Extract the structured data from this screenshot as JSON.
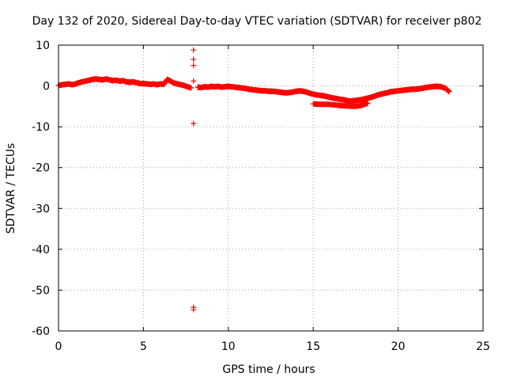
{
  "chart_data": {
    "type": "scatter",
    "title": "Day 132 of 2020, Sidereal Day-to-day VTEC variation (SDTVAR) for receiver p802",
    "xlabel": "GPS time / hours",
    "ylabel": "SDTVAR / TECUs",
    "xlim": [
      0,
      25
    ],
    "ylim": [
      -60,
      10
    ],
    "x_ticks": [
      0,
      5,
      10,
      15,
      20,
      25
    ],
    "y_ticks": [
      10,
      0,
      -10,
      -20,
      -30,
      -40,
      -50,
      -60
    ],
    "grid": true,
    "marker": "+",
    "color": "#ff0000",
    "series": [
      {
        "name": "SDTVAR",
        "points": [
          [
            0.0,
            0.1
          ],
          [
            0.2,
            0.3
          ],
          [
            0.4,
            0.4
          ],
          [
            0.6,
            0.5
          ],
          [
            0.8,
            0.3
          ],
          [
            1.0,
            0.5
          ],
          [
            1.2,
            0.8
          ],
          [
            1.4,
            1.0
          ],
          [
            1.6,
            1.2
          ],
          [
            1.8,
            1.4
          ],
          [
            2.0,
            1.6
          ],
          [
            2.2,
            1.7
          ],
          [
            2.4,
            1.6
          ],
          [
            2.6,
            1.5
          ],
          [
            2.8,
            1.7
          ],
          [
            3.0,
            1.5
          ],
          [
            3.2,
            1.3
          ],
          [
            3.4,
            1.4
          ],
          [
            3.6,
            1.2
          ],
          [
            3.8,
            1.3
          ],
          [
            4.0,
            1.0
          ],
          [
            4.2,
            0.9
          ],
          [
            4.4,
            1.0
          ],
          [
            4.6,
            0.8
          ],
          [
            4.8,
            0.6
          ],
          [
            5.0,
            0.6
          ],
          [
            5.2,
            0.5
          ],
          [
            5.4,
            0.4
          ],
          [
            5.6,
            0.5
          ],
          [
            5.8,
            0.3
          ],
          [
            6.0,
            0.5
          ],
          [
            6.2,
            0.4
          ],
          [
            6.4,
            1.6
          ],
          [
            6.6,
            1.2
          ],
          [
            6.8,
            0.7
          ],
          [
            7.0,
            0.5
          ],
          [
            7.2,
            0.3
          ],
          [
            7.4,
            0.1
          ],
          [
            7.6,
            -0.2
          ],
          [
            7.8,
            -0.5
          ],
          [
            7.95,
            8.8
          ],
          [
            7.95,
            6.5
          ],
          [
            7.95,
            5.0
          ],
          [
            7.95,
            1.2
          ],
          [
            7.95,
            -9.2
          ],
          [
            7.95,
            -54.2
          ],
          [
            7.95,
            -54.8
          ],
          [
            8.2,
            -0.3
          ],
          [
            8.4,
            -0.4
          ],
          [
            8.6,
            -0.2
          ],
          [
            8.8,
            -0.3
          ],
          [
            9.0,
            -0.1
          ],
          [
            9.2,
            -0.2
          ],
          [
            9.4,
            -0.1
          ],
          [
            9.6,
            -0.3
          ],
          [
            9.8,
            -0.2
          ],
          [
            10.0,
            -0.1
          ],
          [
            10.2,
            -0.2
          ],
          [
            10.4,
            -0.3
          ],
          [
            10.6,
            -0.4
          ],
          [
            10.8,
            -0.5
          ],
          [
            11.0,
            -0.6
          ],
          [
            11.2,
            -0.8
          ],
          [
            11.4,
            -0.9
          ],
          [
            11.6,
            -1.0
          ],
          [
            11.8,
            -1.1
          ],
          [
            12.0,
            -1.2
          ],
          [
            12.2,
            -1.2
          ],
          [
            12.4,
            -1.3
          ],
          [
            12.6,
            -1.3
          ],
          [
            12.8,
            -1.4
          ],
          [
            13.0,
            -1.5
          ],
          [
            13.2,
            -1.6
          ],
          [
            13.4,
            -1.7
          ],
          [
            13.6,
            -1.6
          ],
          [
            13.8,
            -1.5
          ],
          [
            14.0,
            -1.3
          ],
          [
            14.2,
            -1.2
          ],
          [
            14.4,
            -1.3
          ],
          [
            14.6,
            -1.5
          ],
          [
            14.8,
            -1.8
          ],
          [
            15.0,
            -2.0
          ],
          [
            15.2,
            -2.2
          ],
          [
            15.4,
            -2.3
          ],
          [
            15.6,
            -2.4
          ],
          [
            15.8,
            -2.6
          ],
          [
            16.0,
            -2.8
          ],
          [
            16.2,
            -3.0
          ],
          [
            16.4,
            -3.1
          ],
          [
            16.6,
            -3.3
          ],
          [
            16.8,
            -3.4
          ],
          [
            17.0,
            -3.6
          ],
          [
            17.2,
            -3.7
          ],
          [
            17.4,
            -3.6
          ],
          [
            17.6,
            -3.5
          ],
          [
            17.8,
            -3.4
          ],
          [
            18.0,
            -3.2
          ],
          [
            18.2,
            -3.0
          ],
          [
            18.4,
            -2.8
          ],
          [
            18.6,
            -2.5
          ],
          [
            18.8,
            -2.2
          ],
          [
            19.0,
            -2.0
          ],
          [
            19.2,
            -1.8
          ],
          [
            19.4,
            -1.6
          ],
          [
            19.6,
            -1.4
          ],
          [
            19.8,
            -1.3
          ],
          [
            20.0,
            -1.2
          ],
          [
            20.2,
            -1.1
          ],
          [
            20.4,
            -1.0
          ],
          [
            20.6,
            -0.9
          ],
          [
            20.8,
            -0.8
          ],
          [
            21.0,
            -0.8
          ],
          [
            21.2,
            -0.7
          ],
          [
            21.4,
            -0.6
          ],
          [
            21.6,
            -0.4
          ],
          [
            21.8,
            -0.3
          ],
          [
            22.0,
            -0.2
          ],
          [
            22.2,
            -0.1
          ],
          [
            22.4,
            -0.1
          ],
          [
            22.6,
            -0.3
          ],
          [
            22.8,
            -0.6
          ],
          [
            23.0,
            -1.4
          ],
          [
            15.0,
            -4.4
          ],
          [
            15.4,
            -4.5
          ],
          [
            15.8,
            -4.5
          ],
          [
            16.2,
            -4.6
          ],
          [
            16.6,
            -4.8
          ],
          [
            17.0,
            -4.9
          ],
          [
            17.4,
            -5.0
          ],
          [
            17.8,
            -4.8
          ],
          [
            18.0,
            -4.5
          ],
          [
            18.2,
            -4.2
          ]
        ]
      }
    ]
  }
}
